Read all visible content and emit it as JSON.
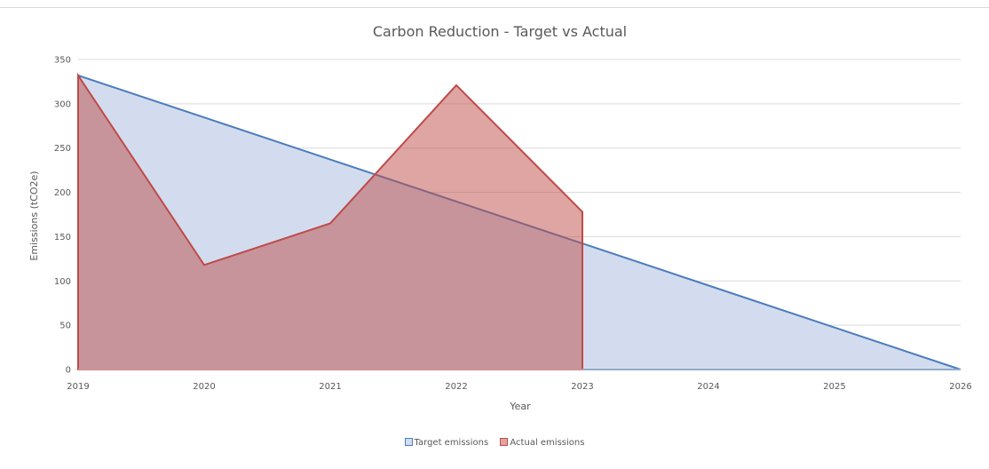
{
  "chart_data": {
    "type": "area",
    "title": "Carbon Reduction - Target vs Actual",
    "xlabel": "Year",
    "ylabel": "Emissions (tCO2e)",
    "x": [
      2019,
      2020,
      2021,
      2022,
      2023,
      2024,
      2025,
      2026
    ],
    "xlim": [
      2019,
      2026
    ],
    "ylim": [
      0,
      350
    ],
    "yticks": [
      0,
      50,
      100,
      150,
      200,
      250,
      300,
      350
    ],
    "grid": true,
    "legend_position": "bottom",
    "series": [
      {
        "name": "Target emissions",
        "x": [
          2019,
          2020,
          2021,
          2022,
          2023,
          2024,
          2025,
          2026
        ],
        "values": [
          332,
          284.6,
          237.1,
          189.7,
          142.3,
          94.9,
          47.4,
          0
        ],
        "line_color": "#4a7ebb",
        "fill_color": "#d3dcef"
      },
      {
        "name": "Actual emissions",
        "x": [
          2019,
          2020,
          2021,
          2022,
          2023
        ],
        "values": [
          332,
          118,
          165,
          321,
          178
        ],
        "line_color": "#be4b48",
        "fill_color": "rgba(190,75,72,0.5)"
      }
    ]
  }
}
